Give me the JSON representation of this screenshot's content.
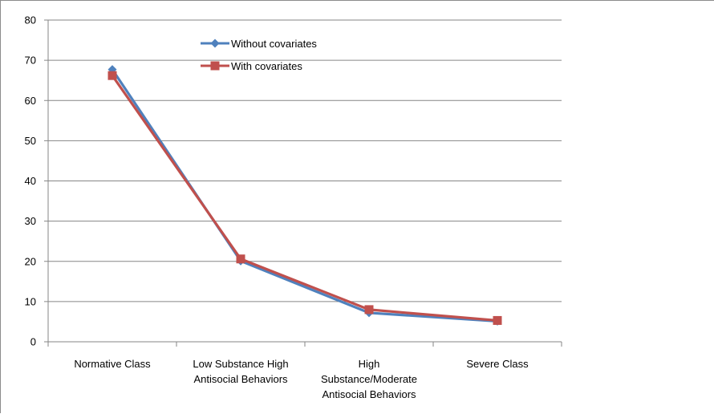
{
  "chart_data": {
    "type": "line",
    "categories": [
      [
        "Normative  Class"
      ],
      [
        "Low Substance  High",
        "Antisocial Behaviors"
      ],
      [
        "High",
        "Substance/Moderate",
        "Antisocial Behaviors"
      ],
      [
        "Severe Class"
      ]
    ],
    "series": [
      {
        "name": "Without covariates",
        "values": [
          67.7,
          20.1,
          7.2,
          5.1
        ],
        "color": "#4F81BD",
        "marker": "diamond"
      },
      {
        "name": "With covariates",
        "values": [
          66.2,
          20.6,
          8.0,
          5.3
        ],
        "color": "#C0504D",
        "marker": "square"
      }
    ],
    "ylim": [
      0,
      80
    ],
    "yticks": [
      0,
      10,
      20,
      30,
      40,
      50,
      60,
      70,
      80
    ],
    "grid": true,
    "legend_position": "top-center-left",
    "title": "",
    "xlabel": "",
    "ylabel": ""
  }
}
